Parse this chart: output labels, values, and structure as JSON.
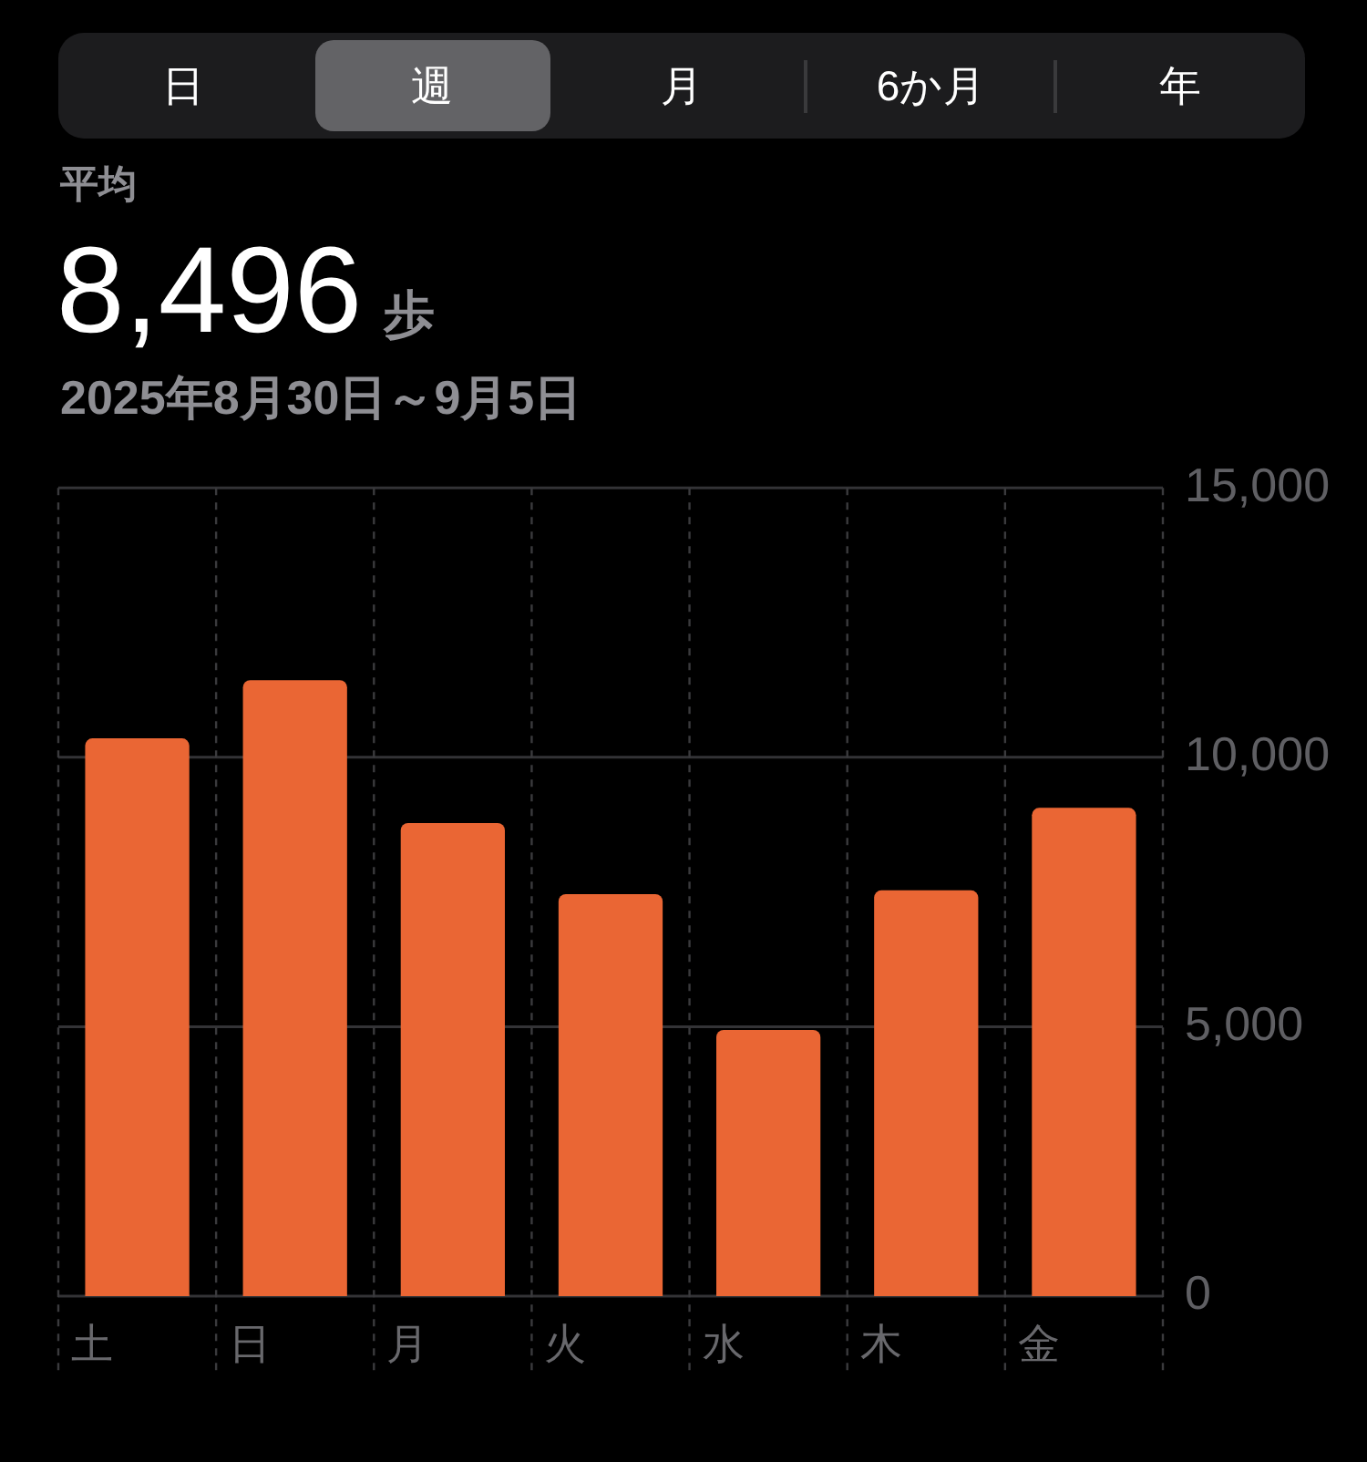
{
  "chart_data": {
    "type": "bar",
    "title": "8,496 歩",
    "subtitle": "2025年8月30日～9月5日",
    "annotations": [
      "日",
      "週",
      "月",
      "6か月",
      "年",
      "平均"
    ],
    "categories": [
      "土",
      "日",
      "月",
      "火",
      "水",
      "木",
      "金"
    ],
    "values": [
      10350,
      11430,
      8780,
      7460,
      4940,
      7530,
      9060
    ],
    "color": "#ea6634",
    "ylim": [
      0,
      15000
    ],
    "yticks": [
      0,
      {
        "value": 5000,
        "label": "5,000"
      },
      {
        "value": 10000,
        "label": "10,000"
      },
      {
        "value": 15000,
        "label": "15,000"
      }
    ],
    "grid": true
  }
}
